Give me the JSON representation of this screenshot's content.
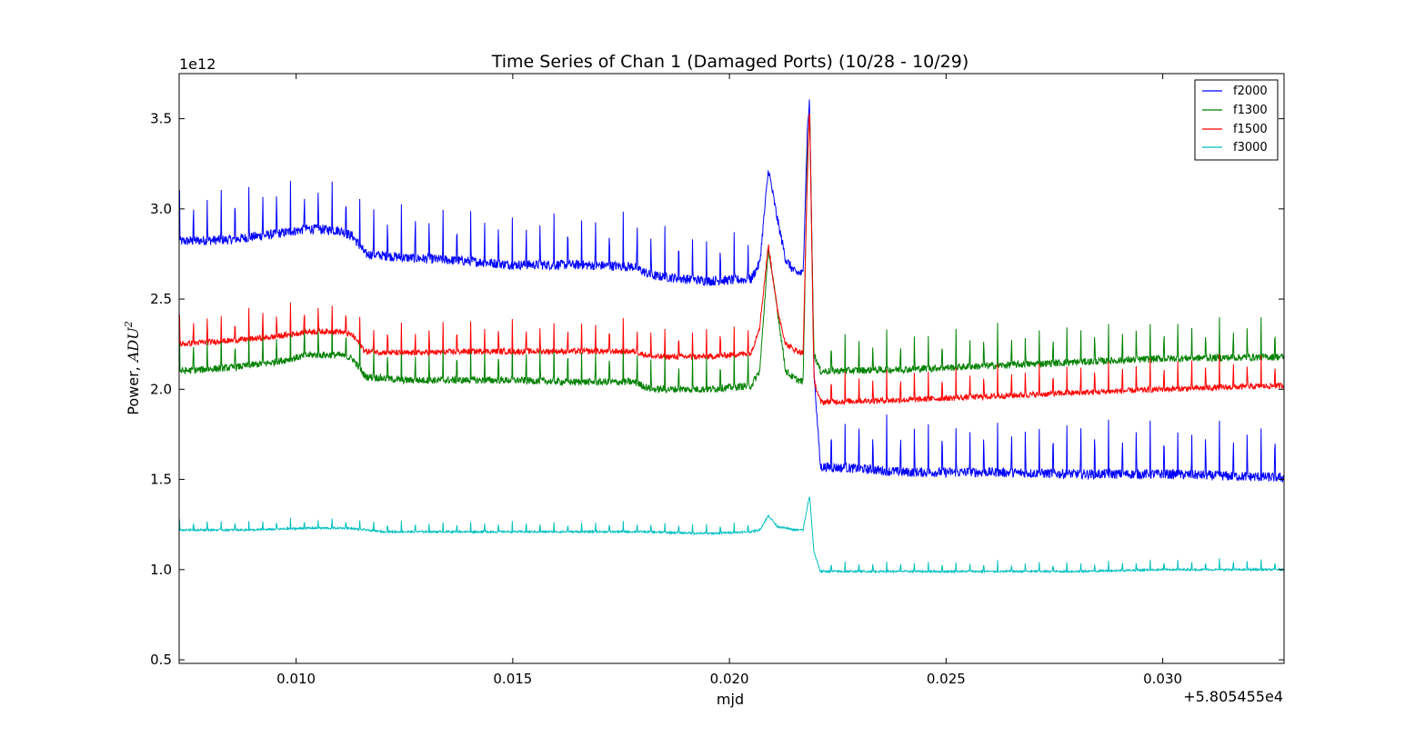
{
  "chart_data": {
    "type": "line",
    "title": "Time Series of Chan 1 (Damaged Ports) (10/28 - 10/29)",
    "xlabel": "mjd",
    "ylabel_prefix": "Power, ",
    "ylabel_math": "ADU",
    "ylabel_exp": "2",
    "x_offset_label": "+5.805455e4",
    "y_exponent_label": "1e12",
    "xlim": [
      0.0073,
      0.0328
    ],
    "ylim": [
      0.48,
      3.75
    ],
    "x_ticks": [
      0.01,
      0.015,
      0.02,
      0.025,
      0.03
    ],
    "x_tick_labels": [
      "0.010",
      "0.015",
      "0.020",
      "0.025",
      "0.030"
    ],
    "y_ticks": [
      0.5,
      1.0,
      1.5,
      2.0,
      2.5,
      3.0,
      3.5
    ],
    "y_tick_labels": [
      "0.5",
      "1.0",
      "1.5",
      "2.0",
      "2.5",
      "3.0",
      "3.5"
    ],
    "grid": false,
    "legend_position": "top-right",
    "series": [
      {
        "name": "f2000",
        "color": "#0000ff",
        "points": [
          [
            0.0073,
            2.82
          ],
          [
            0.0085,
            2.83
          ],
          [
            0.0095,
            2.86
          ],
          [
            0.0103,
            2.89
          ],
          [
            0.011,
            2.88
          ],
          [
            0.0113,
            2.85
          ],
          [
            0.0116,
            2.75
          ],
          [
            0.0125,
            2.73
          ],
          [
            0.014,
            2.71
          ],
          [
            0.015,
            2.69
          ],
          [
            0.0165,
            2.69
          ],
          [
            0.0178,
            2.68
          ],
          [
            0.0182,
            2.63
          ],
          [
            0.0195,
            2.6
          ],
          [
            0.0205,
            2.61
          ],
          [
            0.0207,
            2.7
          ],
          [
            0.0209,
            3.22
          ],
          [
            0.0211,
            2.95
          ],
          [
            0.0213,
            2.72
          ],
          [
            0.0215,
            2.65
          ],
          [
            0.0217,
            2.64
          ],
          [
            0.0218,
            3.45
          ],
          [
            0.02185,
            3.6
          ],
          [
            0.02195,
            2.1
          ],
          [
            0.0221,
            1.57
          ],
          [
            0.023,
            1.56
          ],
          [
            0.024,
            1.54
          ],
          [
            0.026,
            1.54
          ],
          [
            0.028,
            1.53
          ],
          [
            0.03,
            1.53
          ],
          [
            0.0328,
            1.51
          ]
        ],
        "spike_height": 0.3,
        "spike_period": 0.00032
      },
      {
        "name": "f1300",
        "color": "#008000",
        "points": [
          [
            0.0073,
            2.1
          ],
          [
            0.0085,
            2.12
          ],
          [
            0.0095,
            2.15
          ],
          [
            0.0103,
            2.19
          ],
          [
            0.011,
            2.19
          ],
          [
            0.0113,
            2.17
          ],
          [
            0.0116,
            2.07
          ],
          [
            0.0125,
            2.05
          ],
          [
            0.014,
            2.05
          ],
          [
            0.015,
            2.05
          ],
          [
            0.0165,
            2.04
          ],
          [
            0.0178,
            2.04
          ],
          [
            0.0182,
            2.0
          ],
          [
            0.0195,
            2.0
          ],
          [
            0.0205,
            2.02
          ],
          [
            0.0207,
            2.1
          ],
          [
            0.0209,
            2.78
          ],
          [
            0.0211,
            2.45
          ],
          [
            0.0213,
            2.1
          ],
          [
            0.0215,
            2.06
          ],
          [
            0.0217,
            2.04
          ],
          [
            0.0218,
            3.3
          ],
          [
            0.02185,
            3.55
          ],
          [
            0.02195,
            2.2
          ],
          [
            0.0221,
            2.1
          ],
          [
            0.024,
            2.11
          ],
          [
            0.026,
            2.13
          ],
          [
            0.028,
            2.15
          ],
          [
            0.03,
            2.17
          ],
          [
            0.0328,
            2.18
          ]
        ],
        "spike_height": 0.22,
        "spike_period": 0.00032
      },
      {
        "name": "f1500",
        "color": "#ff0000",
        "points": [
          [
            0.0073,
            2.25
          ],
          [
            0.0085,
            2.27
          ],
          [
            0.0095,
            2.29
          ],
          [
            0.0103,
            2.32
          ],
          [
            0.011,
            2.32
          ],
          [
            0.0113,
            2.3
          ],
          [
            0.0116,
            2.21
          ],
          [
            0.0125,
            2.2
          ],
          [
            0.014,
            2.21
          ],
          [
            0.015,
            2.21
          ],
          [
            0.0165,
            2.21
          ],
          [
            0.0178,
            2.21
          ],
          [
            0.0182,
            2.18
          ],
          [
            0.0195,
            2.18
          ],
          [
            0.0205,
            2.2
          ],
          [
            0.0207,
            2.35
          ],
          [
            0.0209,
            2.8
          ],
          [
            0.0211,
            2.45
          ],
          [
            0.0213,
            2.25
          ],
          [
            0.0215,
            2.22
          ],
          [
            0.0217,
            2.2
          ],
          [
            0.0218,
            3.2
          ],
          [
            0.02185,
            3.58
          ],
          [
            0.02195,
            2.05
          ],
          [
            0.0221,
            1.93
          ],
          [
            0.024,
            1.94
          ],
          [
            0.026,
            1.96
          ],
          [
            0.028,
            1.98
          ],
          [
            0.03,
            2.0
          ],
          [
            0.0328,
            2.02
          ]
        ],
        "spike_height": 0.18,
        "spike_period": 0.00032
      },
      {
        "name": "f3000",
        "color": "#00bfbf",
        "points": [
          [
            0.0073,
            1.22
          ],
          [
            0.009,
            1.22
          ],
          [
            0.0103,
            1.23
          ],
          [
            0.0112,
            1.23
          ],
          [
            0.012,
            1.21
          ],
          [
            0.015,
            1.21
          ],
          [
            0.018,
            1.21
          ],
          [
            0.0195,
            1.2
          ],
          [
            0.0205,
            1.21
          ],
          [
            0.0207,
            1.22
          ],
          [
            0.0209,
            1.3
          ],
          [
            0.0211,
            1.24
          ],
          [
            0.0215,
            1.22
          ],
          [
            0.0217,
            1.22
          ],
          [
            0.0218,
            1.35
          ],
          [
            0.02185,
            1.41
          ],
          [
            0.02195,
            1.1
          ],
          [
            0.0221,
            0.99
          ],
          [
            0.024,
            0.99
          ],
          [
            0.026,
            0.99
          ],
          [
            0.028,
            0.99
          ],
          [
            0.03,
            1.0
          ],
          [
            0.0328,
            1.0
          ]
        ],
        "spike_height": 0.06,
        "spike_period": 0.00032
      }
    ]
  }
}
